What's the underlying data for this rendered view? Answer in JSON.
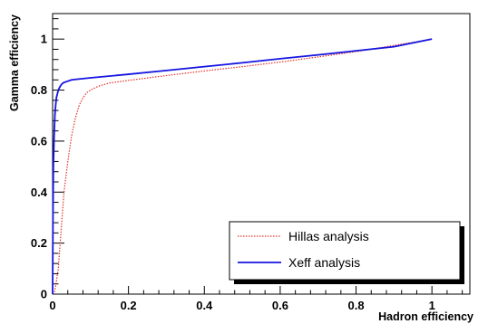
{
  "chart_data": {
    "type": "line",
    "xlabel": "Hadron efficiency",
    "ylabel": "Gamma efficiency",
    "xlim": [
      0,
      1.1
    ],
    "ylim": [
      0,
      1.1
    ],
    "x_ticks": [
      "0",
      "0.2",
      "0.4",
      "0.6",
      "0.8",
      "1"
    ],
    "y_ticks": [
      "0",
      "0.2",
      "0.4",
      "0.6",
      "0.8",
      "1"
    ],
    "grid": false,
    "legend_position": "bottom-right",
    "series": [
      {
        "name": "Hillas analysis",
        "color": "#e0302a",
        "style": "dotted",
        "x": [
          0,
          0.005,
          0.01,
          0.015,
          0.02,
          0.025,
          0.03,
          0.04,
          0.05,
          0.06,
          0.07,
          0.08,
          0.09,
          0.1,
          0.12,
          0.15,
          0.2,
          0.3,
          0.4,
          0.5,
          0.6,
          0.7,
          0.8,
          0.9,
          1.0
        ],
        "y": [
          0,
          0.01,
          0.05,
          0.1,
          0.2,
          0.3,
          0.4,
          0.52,
          0.62,
          0.69,
          0.74,
          0.77,
          0.79,
          0.8,
          0.815,
          0.828,
          0.838,
          0.857,
          0.875,
          0.892,
          0.91,
          0.93,
          0.951,
          0.975,
          1.0
        ]
      },
      {
        "name": "Xeff analysis",
        "color": "#1515e0",
        "style": "solid",
        "x": [
          0,
          0.001,
          0.002,
          0.004,
          0.006,
          0.008,
          0.01,
          0.015,
          0.02,
          0.025,
          0.03,
          0.04,
          0.05,
          0.06,
          0.08,
          0.1,
          0.2,
          0.3,
          0.4,
          0.5,
          0.6,
          0.7,
          0.8,
          0.9,
          1.0
        ],
        "y": [
          0,
          0.32,
          0.5,
          0.62,
          0.7,
          0.74,
          0.77,
          0.8,
          0.815,
          0.825,
          0.83,
          0.835,
          0.84,
          0.842,
          0.845,
          0.848,
          0.862,
          0.877,
          0.892,
          0.907,
          0.923,
          0.938,
          0.954,
          0.97,
          1.0
        ]
      }
    ]
  }
}
